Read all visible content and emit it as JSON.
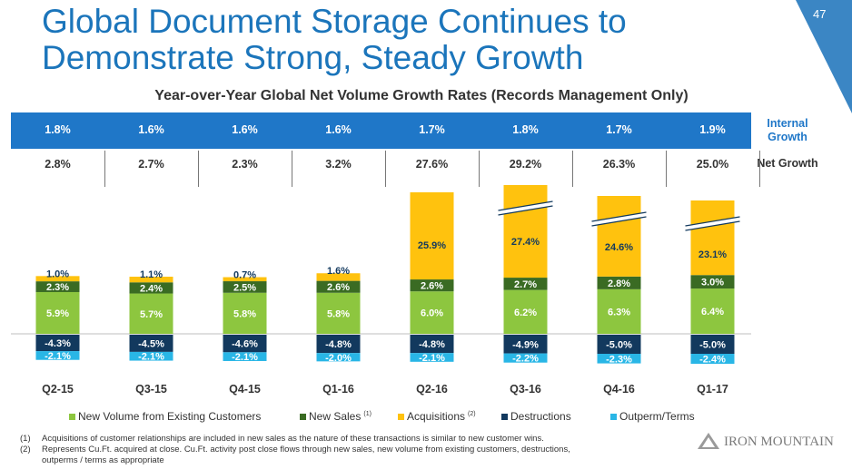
{
  "page_number": "47",
  "title_line1": "Global Document Storage Continues to",
  "title_line2": "Demonstrate Strong, Steady Growth",
  "subtitle": "Year-over-Year Global Net Volume Growth Rates (Records Management Only)",
  "row_labels": {
    "internal": "Internal Growth",
    "net": "Net Growth"
  },
  "internal_growth": [
    "1.8%",
    "1.6%",
    "1.6%",
    "1.6%",
    "1.7%",
    "1.8%",
    "1.7%",
    "1.9%"
  ],
  "net_growth": [
    "2.8%",
    "2.7%",
    "2.3%",
    "3.2%",
    "27.6%",
    "29.2%",
    "26.3%",
    "25.0%"
  ],
  "colors": {
    "blue_band": "#1f77c8",
    "new_volume": "#8dc63f",
    "new_sales": "#3a6b23",
    "acquisitions": "#ffc20e",
    "destructions": "#12395e",
    "outperm": "#29b6e6",
    "title": "#1b75bb"
  },
  "chart_data": {
    "type": "bar",
    "stacked": true,
    "categories": [
      "Q2-15",
      "Q3-15",
      "Q4-15",
      "Q1-16",
      "Q2-16",
      "Q3-16",
      "Q4-16",
      "Q1-17"
    ],
    "series": [
      {
        "name": "New Volume from Existing Customers",
        "key": "new_volume",
        "values": [
          5.9,
          5.7,
          5.8,
          5.8,
          6.0,
          6.2,
          6.3,
          6.4
        ],
        "labels": [
          "5.9%",
          "5.7%",
          "5.8%",
          "5.8%",
          "6.0%",
          "6.2%",
          "6.3%",
          "6.4%"
        ]
      },
      {
        "name": "New Sales",
        "key": "new_sales",
        "footnote": "(1)",
        "values": [
          2.3,
          2.4,
          2.5,
          2.6,
          2.6,
          2.7,
          2.8,
          3.0
        ],
        "labels": [
          "2.3%",
          "2.4%",
          "2.5%",
          "2.6%",
          "2.6%",
          "2.7%",
          "2.8%",
          "3.0%"
        ]
      },
      {
        "name": "Acquisitions",
        "key": "acquisitions",
        "footnote": "(2)",
        "values": [
          1.0,
          1.1,
          0.7,
          1.6,
          25.9,
          27.4,
          24.6,
          23.1
        ],
        "labels": [
          "1.0%",
          "1.1%",
          "0.7%",
          "1.6%",
          "25.9%",
          "27.4%",
          "24.6%",
          "23.1%"
        ]
      },
      {
        "name": "Destructions",
        "key": "destructions",
        "values": [
          -4.3,
          -4.5,
          -4.6,
          -4.8,
          -4.8,
          -4.9,
          -5.0,
          -5.0
        ],
        "labels": [
          "-4.3%",
          "-4.5%",
          "-4.6%",
          "-4.8%",
          "-4.8%",
          "-4.9%",
          "-5.0%",
          "-5.0%"
        ]
      },
      {
        "name": "Outperm/Terms",
        "key": "outperm",
        "values": [
          -2.1,
          -2.1,
          -2.1,
          -2.0,
          -2.1,
          -2.2,
          -2.3,
          -2.4
        ],
        "labels": [
          "-2.1%",
          "-2.1%",
          "-2.1%",
          "-2.0%",
          "-2.1%",
          "-2.2%",
          "-2.3%",
          "-2.4%"
        ]
      }
    ],
    "axis_break_categories": [
      "Q3-16",
      "Q4-16",
      "Q1-17"
    ],
    "legend_position": "bottom"
  },
  "footnotes": [
    {
      "num": "(1)",
      "text": "Acquisitions of customer relationships are included in new sales as the nature of these transactions is similar to new customer wins."
    },
    {
      "num": "(2)",
      "text": "Represents Cu.Ft. acquired at close. Cu.Ft. activity post close flows through new sales, new volume from existing customers, destructions,"
    },
    {
      "num": "",
      "text": "outperms / terms as appropriate"
    }
  ],
  "logo": "IRON MOUNTAIN"
}
